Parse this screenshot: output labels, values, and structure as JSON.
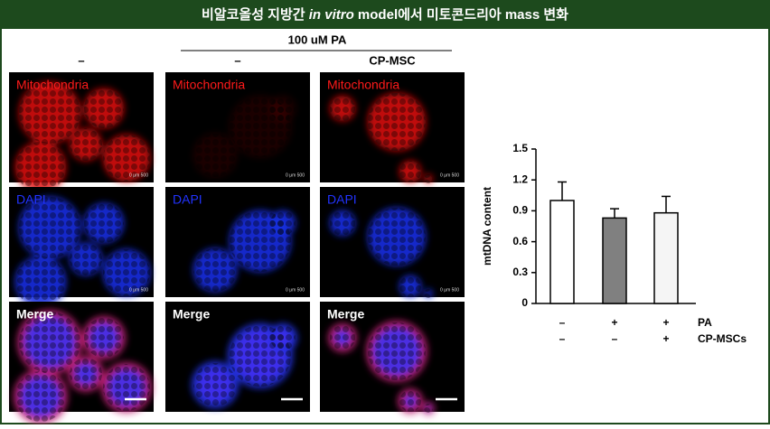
{
  "header": {
    "title_parts": [
      "비알코올성 지방간 ",
      "in vitro",
      " model에서 미토콘드리아 mass 변화"
    ]
  },
  "columns": {
    "group_label": "100 uM PA",
    "labels": [
      "–",
      "–",
      "CP-MSC"
    ]
  },
  "panels": {
    "rows": [
      "Mitochondria",
      "DAPI",
      "Merge"
    ],
    "scale_label": "0 μm 500"
  },
  "chart_data": {
    "type": "bar",
    "y_label": "mtDNA content",
    "values": [
      1.0,
      0.83,
      0.88
    ],
    "errors": [
      0.18,
      0.09,
      0.16
    ],
    "colors": [
      "#ffffff",
      "#808080",
      "#f5f5f5"
    ],
    "ylim": [
      0,
      1.5
    ],
    "yticks": [
      0,
      0.3,
      0.6,
      0.9,
      1.2,
      1.5
    ],
    "conditions": [
      {
        "name": "PA",
        "labels": [
          "–",
          "+",
          "+"
        ]
      },
      {
        "name": "CP-MSCs",
        "labels": [
          "–",
          "–",
          "+"
        ]
      }
    ]
  }
}
